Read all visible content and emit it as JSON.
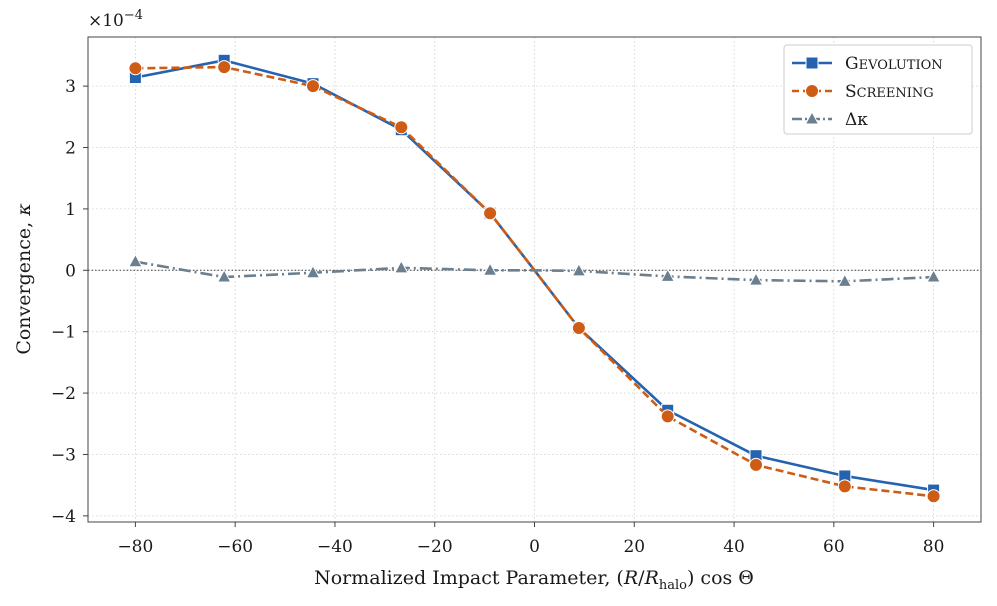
{
  "chart_data": {
    "type": "line",
    "title": "",
    "xlabel": "Normalized Impact Parameter, (R/R_halo) cos Θ",
    "ylabel": "Convergence, κ",
    "y_scale_label": "×10^−4",
    "xlim": [
      -89.5,
      89.5
    ],
    "ylim": [
      -4.1,
      3.8
    ],
    "x_ticks": [
      -80,
      -60,
      -40,
      -20,
      0,
      20,
      40,
      60,
      80
    ],
    "x_tick_labels": [
      "−80",
      "−60",
      "−40",
      "−20",
      "0",
      "20",
      "40",
      "60",
      "80"
    ],
    "y_ticks": [
      -4,
      -3,
      -2,
      -1,
      0,
      1,
      2,
      3
    ],
    "y_tick_labels": [
      "−4",
      "−3",
      "−2",
      "−1",
      "0",
      "1",
      "2",
      "3"
    ],
    "grid": true,
    "zero_line": true,
    "legend_position": "top-right",
    "x": [
      -80,
      -62.2,
      -44.4,
      -26.7,
      -8.9,
      0,
      8.9,
      26.7,
      44.4,
      62.2,
      80
    ],
    "series": [
      {
        "name": "Gevolution",
        "legend_main": "G",
        "legend_small": "EVOLUTION",
        "color": "#2563b0",
        "marker": "square",
        "linestyle": "solid",
        "values": [
          3.14,
          3.42,
          3.04,
          2.29,
          0.93,
          0.0,
          -0.94,
          -2.28,
          -3.02,
          -3.35,
          -3.58
        ]
      },
      {
        "name": "Screening",
        "legend_main": "S",
        "legend_small": "CREENING",
        "color": "#cf5c14",
        "marker": "circle",
        "linestyle": "dashed",
        "values": [
          3.29,
          3.31,
          3.0,
          2.33,
          0.93,
          0.0,
          -0.94,
          -2.38,
          -3.17,
          -3.52,
          -3.68
        ]
      },
      {
        "name": "Δκ",
        "legend_main": "Δκ",
        "legend_small": "",
        "color": "#6b7f8f",
        "marker": "triangle",
        "linestyle": "dashdot",
        "values": [
          0.14,
          -0.11,
          -0.04,
          0.04,
          0.0,
          0.0,
          -0.01,
          -0.1,
          -0.16,
          -0.18,
          -0.11
        ]
      }
    ]
  }
}
